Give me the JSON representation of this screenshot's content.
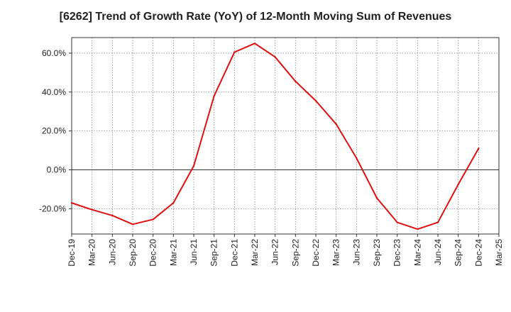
{
  "chart_data": {
    "type": "line",
    "title": "[6262]  Trend of Growth Rate (YoY) of 12-Month Moving Sum of Revenues",
    "xlabel": "",
    "ylabel": "",
    "x": [
      "Dec-19",
      "Mar-20",
      "Jun-20",
      "Sep-20",
      "Dec-20",
      "Mar-21",
      "Jun-21",
      "Sep-21",
      "Dec-21",
      "Mar-22",
      "Jun-22",
      "Sep-22",
      "Dec-22",
      "Mar-23",
      "Jun-23",
      "Sep-23",
      "Dec-23",
      "Mar-24",
      "Jun-24",
      "Sep-24",
      "Dec-24",
      "Mar-25"
    ],
    "x_tick_labels": [
      "Dec-19",
      "Mar-20",
      "Jun-20",
      "Sep-20",
      "Dec-20",
      "Mar-21",
      "Jun-21",
      "Sep-21",
      "Dec-21",
      "Mar-22",
      "Jun-22",
      "Sep-22",
      "Dec-22",
      "Mar-23",
      "Jun-23",
      "Sep-23",
      "Dec-23",
      "Mar-24",
      "Jun-24",
      "Sep-24",
      "Dec-24",
      "Mar-25"
    ],
    "y_ticks": [
      -20,
      0,
      20,
      40,
      60
    ],
    "y_tick_labels": [
      "-20.0%",
      "0.0%",
      "20.0%",
      "40.0%",
      "60.0%"
    ],
    "ylim": [
      -33,
      68
    ],
    "grid": true,
    "series": [
      {
        "color": "#dd1111",
        "points": [
          [
            "Dec-19",
            -17.0
          ],
          [
            "Mar-20",
            -20.5
          ],
          [
            "Jun-20",
            -23.5
          ],
          [
            "Sep-20",
            -28.0
          ],
          [
            "Dec-20",
            -25.5
          ],
          [
            "Mar-21",
            -17.0
          ],
          [
            "Jun-21",
            2.0
          ],
          [
            "Sep-21",
            38.0
          ],
          [
            "Dec-21",
            60.5
          ],
          [
            "Mar-22",
            65.0
          ],
          [
            "Jun-22",
            58.0
          ],
          [
            "Sep-22",
            45.5
          ],
          [
            "Dec-22",
            35.5
          ],
          [
            "Mar-23",
            23.5
          ],
          [
            "Jun-23",
            6.0
          ],
          [
            "Sep-23",
            -14.5
          ],
          [
            "Dec-23",
            -27.0
          ],
          [
            "Mar-24",
            -30.5
          ],
          [
            "Jun-24",
            -27.0
          ],
          [
            "Sep-24",
            -7.5
          ],
          [
            "Dec-24",
            11.0
          ]
        ]
      }
    ]
  }
}
